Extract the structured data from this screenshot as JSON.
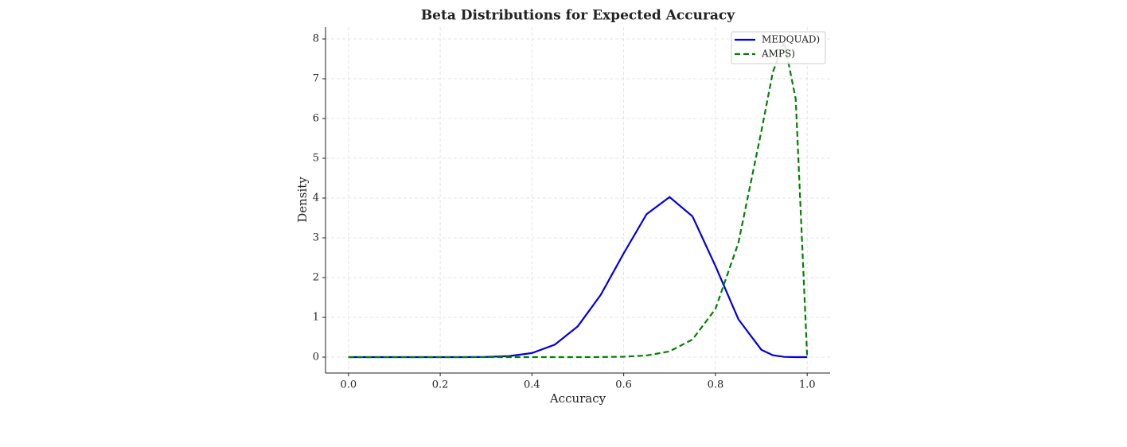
{
  "chart_data": {
    "type": "line",
    "title": "Beta Distributions for Expected Accuracy",
    "x_label": "Accuracy",
    "y_label": "Density",
    "x": [
      0,
      0.05,
      0.1,
      0.15,
      0.2,
      0.25,
      0.3,
      0.35,
      0.4,
      0.45,
      0.5,
      0.55,
      0.6,
      0.65,
      0.7,
      0.75,
      0.8,
      0.85,
      0.9,
      0.925,
      0.95,
      0.975,
      1.0
    ],
    "series": [
      {
        "name": "MEDQUAD)",
        "color": "#0000dd",
        "dash": "solid",
        "values": [
          0,
          0,
          0,
          0,
          0,
          0.0005,
          0.0046,
          0.0254,
          0.102,
          0.315,
          0.776,
          1.566,
          2.61,
          3.596,
          4.025,
          3.539,
          2.291,
          0.953,
          0.186,
          0.0487,
          0.0062,
          0,
          0
        ]
      },
      {
        "name": "AMPS)",
        "color": "#008000",
        "dash": "dashed",
        "values": [
          0,
          0,
          0,
          0,
          0,
          0,
          0,
          0,
          0,
          0,
          0.0004,
          0.0022,
          0.0102,
          0.041,
          0.144,
          0.444,
          1.211,
          2.873,
          5.675,
          7.16,
          7.93,
          6.49,
          0
        ]
      }
    ],
    "xlim": [
      -0.05,
      1.05
    ],
    "ylim": [
      -0.4,
      8.3
    ],
    "xticks": [
      {
        "value": 0,
        "label": "0.0"
      },
      {
        "value": 0.2,
        "label": "0.2"
      },
      {
        "value": 0.4,
        "label": "0.4"
      },
      {
        "value": 0.6,
        "label": "0.6"
      },
      {
        "value": 0.8,
        "label": "0.8"
      },
      {
        "value": 1,
        "label": "1.0"
      }
    ],
    "yticks": [
      0,
      1,
      2,
      3,
      4,
      5,
      6,
      7,
      8
    ],
    "grid": true,
    "legend": "upper-right"
  }
}
